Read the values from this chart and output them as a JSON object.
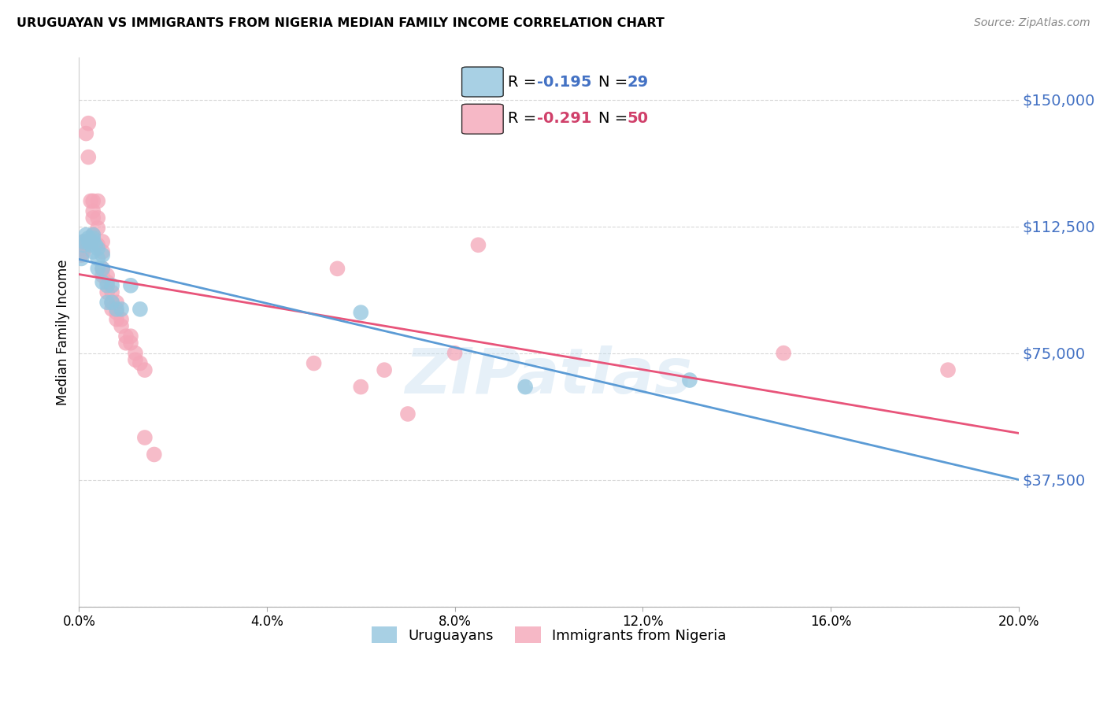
{
  "title": "URUGUAYAN VS IMMIGRANTS FROM NIGERIA MEDIAN FAMILY INCOME CORRELATION CHART",
  "source": "Source: ZipAtlas.com",
  "ylabel": "Median Family Income",
  "yticks": [
    0,
    37500,
    75000,
    112500,
    150000
  ],
  "ytick_labels": [
    "",
    "$37,500",
    "$75,000",
    "$112,500",
    "$150,000"
  ],
  "ylim": [
    0,
    162500
  ],
  "xlim": [
    0.0,
    0.2
  ],
  "xticks": [
    0.0,
    0.04,
    0.08,
    0.12,
    0.16,
    0.2
  ],
  "xtick_labels": [
    "0.0%",
    "4.0%",
    "8.0%",
    "12.0%",
    "16.0%",
    "20.0%"
  ],
  "background_color": "#ffffff",
  "grid_color": "#d8d8d8",
  "blue_color": "#92c5de",
  "pink_color": "#f4a6b8",
  "blue_line_color": "#5b9bd5",
  "pink_line_color": "#e8547a",
  "legend_R_blue": "-0.195",
  "legend_N_blue": "29",
  "legend_R_pink": "-0.291",
  "legend_N_pink": "50",
  "legend_label_blue": "Uruguayans",
  "legend_label_pink": "Immigrants from Nigeria",
  "watermark": "ZIPatlas",
  "uruguayan_x": [
    0.0005,
    0.001,
    0.001,
    0.0015,
    0.002,
    0.002,
    0.0025,
    0.003,
    0.003,
    0.003,
    0.003,
    0.0035,
    0.004,
    0.004,
    0.004,
    0.005,
    0.005,
    0.005,
    0.006,
    0.006,
    0.007,
    0.007,
    0.008,
    0.009,
    0.011,
    0.013,
    0.06,
    0.095,
    0.13
  ],
  "uruguayan_y": [
    103000,
    107000,
    108000,
    110000,
    108000,
    109000,
    107000,
    105000,
    108000,
    109000,
    110000,
    107000,
    100000,
    103000,
    106000,
    96000,
    100000,
    104000,
    90000,
    95000,
    90000,
    95000,
    88000,
    88000,
    95000,
    88000,
    87000,
    65000,
    67000
  ],
  "nigeria_x": [
    0.0005,
    0.001,
    0.001,
    0.001,
    0.0015,
    0.002,
    0.002,
    0.0025,
    0.003,
    0.003,
    0.003,
    0.003,
    0.004,
    0.004,
    0.004,
    0.004,
    0.005,
    0.005,
    0.005,
    0.005,
    0.006,
    0.006,
    0.006,
    0.007,
    0.007,
    0.007,
    0.008,
    0.008,
    0.008,
    0.009,
    0.009,
    0.01,
    0.01,
    0.011,
    0.011,
    0.012,
    0.012,
    0.013,
    0.014,
    0.014,
    0.016,
    0.05,
    0.055,
    0.06,
    0.065,
    0.07,
    0.08,
    0.085,
    0.15,
    0.185
  ],
  "nigeria_y": [
    104000,
    105000,
    106000,
    108000,
    140000,
    143000,
    133000,
    120000,
    117000,
    110000,
    115000,
    120000,
    120000,
    115000,
    112000,
    107000,
    105000,
    108000,
    100000,
    98000,
    98000,
    96000,
    93000,
    93000,
    90000,
    88000,
    90000,
    87000,
    85000,
    85000,
    83000,
    80000,
    78000,
    80000,
    78000,
    75000,
    73000,
    72000,
    70000,
    50000,
    45000,
    72000,
    100000,
    65000,
    70000,
    57000,
    75000,
    107000,
    75000,
    70000
  ]
}
